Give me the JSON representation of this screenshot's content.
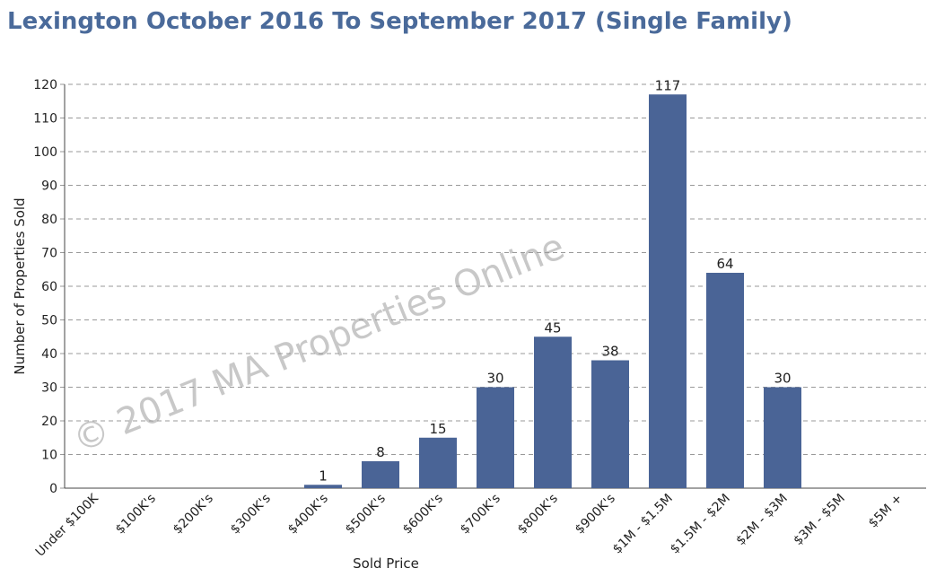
{
  "chart_data": {
    "type": "bar",
    "title": "Lexington October 2016 To September 2017 (Single Family)",
    "watermark": "© 2017 MA Properties Online",
    "x_label": "Sold Price",
    "y_label": "Number of Properties Sold",
    "categories": [
      "Under $100K",
      "$100K's",
      "$200K's",
      "$300K's",
      "$400K's",
      "$500K's",
      "$600K's",
      "$700K's",
      "$800K's",
      "$900K's",
      "$1M - $1.5M",
      "$1.5M - $2M",
      "$2M - $3M",
      "$3M - $5M",
      "$5M +"
    ],
    "values": [
      0,
      0,
      0,
      0,
      1,
      8,
      15,
      30,
      45,
      38,
      117,
      64,
      30,
      0,
      0
    ],
    "color": "#4a6496",
    "ylim": [
      0,
      120
    ],
    "yticks": [
      0,
      10,
      20,
      30,
      40,
      50,
      60,
      70,
      80,
      90,
      100,
      110,
      120
    ],
    "grid": true
  }
}
